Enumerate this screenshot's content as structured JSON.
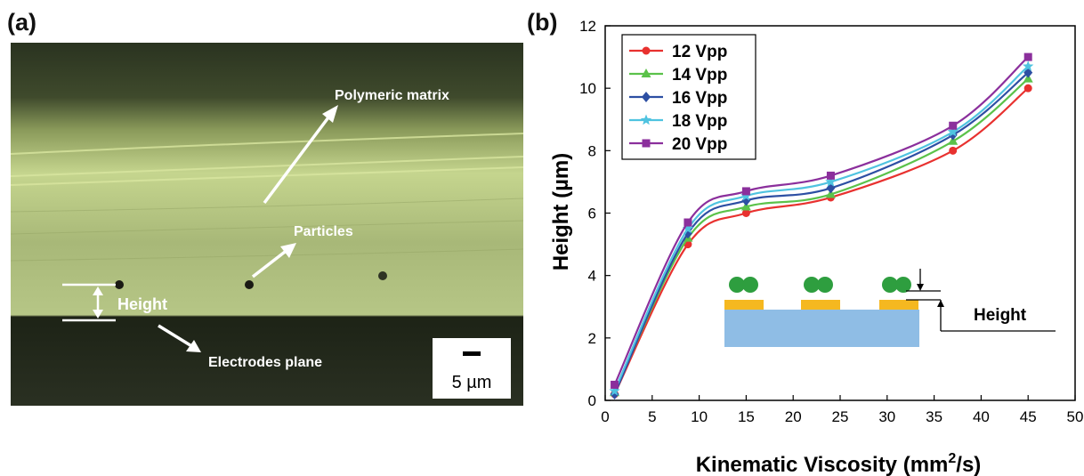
{
  "panel_a": {
    "label": "(a)",
    "annotations": {
      "polymeric_matrix": "Polymeric matrix",
      "particles": "Particles",
      "height": "Height",
      "electrodes_plane": "Electrodes plane"
    },
    "scale_bar": "5 µm"
  },
  "panel_b": {
    "label": "(b)",
    "inset": {
      "height_label": "Height"
    }
  },
  "colors": {
    "12 Vpp": "#e8312f",
    "14 Vpp": "#5bc24a",
    "16 Vpp": "#2d4fa3",
    "18 Vpp": "#4fc3e0",
    "20 Vpp": "#8b2f9c",
    "inset_substrate": "#8fbde5",
    "inset_electrode": "#f5b820",
    "inset_particle": "#2e9e3f"
  },
  "chart_data": {
    "type": "line",
    "xlabel": "Kinematic Viscosity (mm",
    "xlabel_sup": "2",
    "xlabel_tail": "/s)",
    "ylabel": "Height (µm)",
    "xlim": [
      0,
      50
    ],
    "ylim": [
      0,
      12
    ],
    "xticks": [
      0,
      5,
      10,
      15,
      20,
      25,
      30,
      35,
      40,
      45,
      50
    ],
    "yticks": [
      0,
      2,
      4,
      6,
      8,
      10,
      12
    ],
    "legend_position": "top-left",
    "grid": false,
    "x": [
      1,
      8.8,
      15,
      24,
      37,
      45
    ],
    "series": [
      {
        "name": "12 Vpp",
        "marker": "circle",
        "values": [
          0.2,
          5.0,
          6.0,
          6.5,
          8.0,
          10.0
        ]
      },
      {
        "name": "14 Vpp",
        "marker": "triangle",
        "values": [
          0.25,
          5.2,
          6.2,
          6.6,
          8.3,
          10.3
        ]
      },
      {
        "name": "16 Vpp",
        "marker": "diamond",
        "values": [
          0.2,
          5.35,
          6.4,
          6.8,
          8.5,
          10.5
        ]
      },
      {
        "name": "18 Vpp",
        "marker": "star",
        "values": [
          0.3,
          5.5,
          6.55,
          7.0,
          8.6,
          10.7
        ]
      },
      {
        "name": "20 Vpp",
        "marker": "square",
        "values": [
          0.5,
          5.7,
          6.7,
          7.2,
          8.8,
          11.0
        ]
      }
    ]
  }
}
